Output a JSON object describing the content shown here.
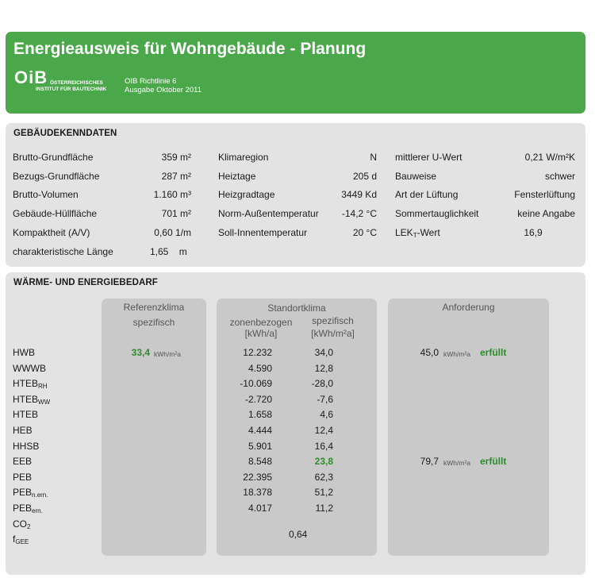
{
  "header": {
    "title": "Energieausweis für Wohngebäude - Planung",
    "logo_mark": "OiB",
    "logo_line1": "ÖSTERREICHISCHES",
    "logo_line2": "INSTITUT FÜR BAUTECHNIK",
    "richtlinie": "OIB Richtlinie 6",
    "ausgabe": "Ausgabe Oktober 2011"
  },
  "kenndaten": {
    "title": "GEBÄUDEKENNDATEN",
    "col1": [
      {
        "label": "Brutto-Grundfläche",
        "value": "359 m²"
      },
      {
        "label": "Bezugs-Grundfläche",
        "value": "287 m²"
      },
      {
        "label": "Brutto-Volumen",
        "value": "1.160 m³"
      },
      {
        "label": "Gebäude-Hüllfläche",
        "value": "701 m²"
      },
      {
        "label": "Kompaktheit (A/V)",
        "value": "0,60 1/m"
      },
      {
        "label": "charakteristische Länge",
        "value": "1,65    m"
      }
    ],
    "col2": [
      {
        "label": "Klimaregion",
        "value": "N"
      },
      {
        "label": "Heiztage",
        "value": "205 d"
      },
      {
        "label": "Heizgradtage",
        "value": "3449 Kd"
      },
      {
        "label": "Norm-Außentemperatur",
        "value": "-14,2 °C"
      },
      {
        "label": "Soll-Innentemperatur",
        "value": "20 °C"
      }
    ],
    "col3": [
      {
        "label": "mittlerer U-Wert",
        "value": "0,21 W/m²K"
      },
      {
        "label": "Bauweise",
        "value": "schwer"
      },
      {
        "label": "Art der Lüftung",
        "value": "Fensterlüftung"
      },
      {
        "label": "Sommertauglichkeit",
        "value": "keine Angabe"
      },
      {
        "label_main": "LEK",
        "label_sub": "T",
        "label_tail": "-Wert",
        "value": "16,9"
      }
    ]
  },
  "bedarf": {
    "title": "WÄRME- UND ENERGIEBEDARF",
    "referenz_header": [
      "Referenzklima",
      "spezifisch"
    ],
    "standort_header": "Standortklima",
    "standort_sub1": [
      "zonenbezogen",
      "[kWh/a]"
    ],
    "standort_sub2": [
      "spezifisch",
      "[kWh/m²a]"
    ],
    "anforderung_header": "Anforderung",
    "rows": [
      {
        "label": "HWB",
        "sub": "",
        "ref": "33,4",
        "ref_unit": "kWh/m²a",
        "zone": "12.232",
        "spez": "34,0",
        "anf": "45,0",
        "anf_unit": "kWh/m²a",
        "status": "erfüllt"
      },
      {
        "label": "WWWB",
        "sub": "",
        "zone": "4.590",
        "spez": "12,8"
      },
      {
        "label": "HTEB",
        "sub": "RH",
        "zone": "-10.069",
        "spez": "-28,0"
      },
      {
        "label": "HTEB",
        "sub": "WW",
        "zone": "-2.720",
        "spez": "-7,6"
      },
      {
        "label": "HTEB",
        "sub": "",
        "zone": "1.658",
        "spez": "4,6"
      },
      {
        "label": "HEB",
        "sub": "",
        "zone": "4.444",
        "spez": "12,4"
      },
      {
        "label": "HHSB",
        "sub": "",
        "zone": "5.901",
        "spez": "16,4"
      },
      {
        "label": "EEB",
        "sub": "",
        "zone": "8.548",
        "spez": "23,8",
        "spez_green": true,
        "anf": "79,7",
        "anf_unit": "kWh/m²a",
        "status": "erfüllt"
      },
      {
        "label": "PEB",
        "sub": "",
        "zone": "22.395",
        "spez": "62,3"
      },
      {
        "label": "PEB",
        "sub": "n.ern.",
        "zone": "18.378",
        "spez": "51,2"
      },
      {
        "label": "PEB",
        "sub": "ern.",
        "zone": "4.017",
        "spez": "11,2"
      },
      {
        "label": "CO",
        "sub": "2",
        "zone": "",
        "spez": ""
      },
      {
        "label": "f",
        "sub": "GEE",
        "fgee": "0,64"
      }
    ]
  }
}
